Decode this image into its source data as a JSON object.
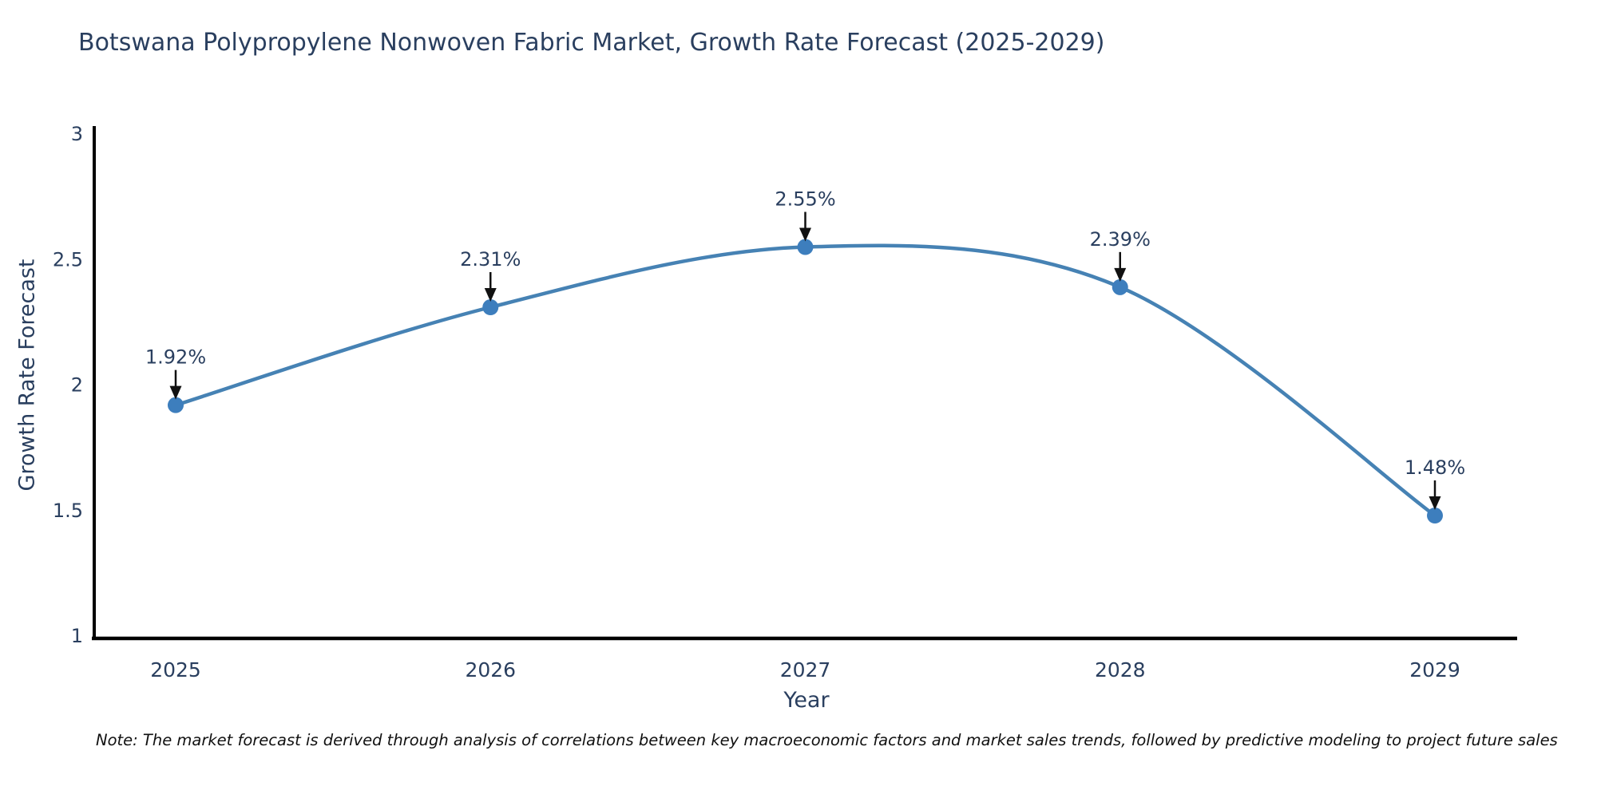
{
  "note": "Note: The market forecast is derived through analysis of correlations between key macroeconomic factors and market sales trends, followed by predictive modeling to project future sales",
  "colors": {
    "line": "#4682b4",
    "marker": "#3d7ebd",
    "axis": "#000000",
    "tick_text": "#2a3f5f",
    "annotation_text": "#2a3f5f",
    "arrow": "#111111",
    "background": "#ffffff"
  },
  "chart_data": {
    "type": "line",
    "title": "Botswana Polypropylene Nonwoven Fabric Market, Growth Rate Forecast (2025-2029)",
    "xlabel": "Year",
    "ylabel": "Growth Rate Forecast",
    "categories": [
      "2025",
      "2026",
      "2027",
      "2028",
      "2029"
    ],
    "x": [
      2025,
      2026,
      2027,
      2028,
      2029
    ],
    "values": [
      1.92,
      2.31,
      2.55,
      2.39,
      1.48
    ],
    "point_labels": [
      "1.92%",
      "2.31%",
      "2.55%",
      "2.39%",
      "1.48%"
    ],
    "ylim": [
      1,
      3
    ],
    "yticks": [
      1,
      1.5,
      2,
      2.5,
      3
    ],
    "line_shape": "spline",
    "grid": false,
    "legend": false,
    "annotations": "black down arrows from labels to markers"
  }
}
